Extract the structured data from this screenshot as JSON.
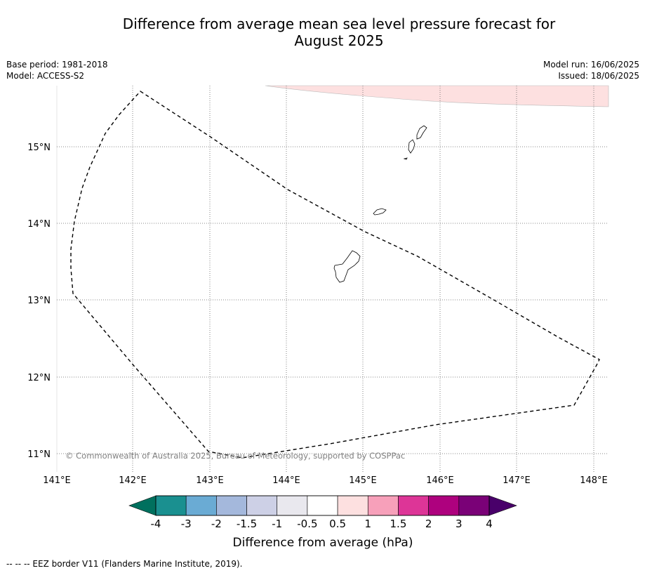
{
  "title": {
    "line1": "Difference from average mean sea level pressure forecast for",
    "line2": "August 2025"
  },
  "meta_left": {
    "base_period": "Base period: 1981-2018",
    "model": "Model: ACCESS-S2"
  },
  "meta_right": {
    "model_run": "Model run: 16/06/2025",
    "issued": "Issued: 18/06/2025"
  },
  "map": {
    "lon_ticks": [
      "141°E",
      "142°E",
      "143°E",
      "144°E",
      "145°E",
      "146°E",
      "147°E",
      "148°E"
    ],
    "lat_ticks": [
      "15°N",
      "14°N",
      "13°N",
      "12°N",
      "11°N"
    ],
    "copyright": "© Commonwealth of Australia 2025, Bureau of Meteorology, supported by COSPPac",
    "anomaly_fill_color": "#fde0e0"
  },
  "colorbar": {
    "tick_labels": [
      "-4",
      "-3",
      "-2",
      "-1.5",
      "-1",
      "-0.5",
      "0.5",
      "1",
      "1.5",
      "2",
      "3",
      "4"
    ],
    "colors": [
      "#1a9090",
      "#6aabd4",
      "#a4b8dc",
      "#cdd0e6",
      "#e9e8ee",
      "#ffffff",
      "#fde0e0",
      "#f7a0ba",
      "#dd3597",
      "#ae017e",
      "#7a0177"
    ],
    "under_color": "#00705e",
    "over_color": "#49006a",
    "label": "Difference from average (hPa)"
  },
  "footer": {
    "legend": "--  --  -- EEZ border V11 (Flanders Marine Institute, 2019)."
  }
}
